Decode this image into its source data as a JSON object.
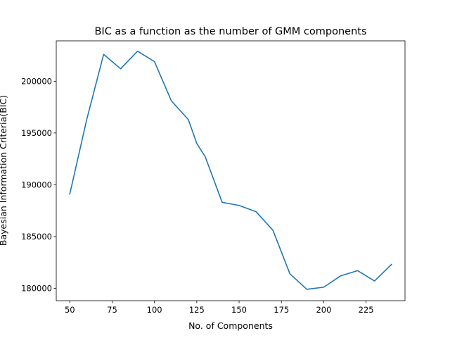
{
  "chart_data": {
    "type": "line",
    "title": "BIC as a function as the number of GMM components",
    "xlabel": "No. of Components",
    "ylabel": "Bayesian Information Criteria(BIC)",
    "xlim": [
      42,
      248
    ],
    "ylim": [
      178800,
      203900
    ],
    "xticks": [
      50,
      75,
      100,
      125,
      150,
      175,
      200,
      225
    ],
    "yticks": [
      180000,
      185000,
      190000,
      195000,
      200000
    ],
    "grid": false,
    "series": [
      {
        "color": "#1f77b4",
        "x": [
          50,
          60,
          70,
          80,
          90,
          100,
          110,
          120,
          125,
          130,
          140,
          150,
          160,
          170,
          180,
          190,
          200,
          210,
          220,
          230,
          240
        ],
        "y": [
          189100,
          196300,
          202600,
          201200,
          202900,
          201900,
          198100,
          196300,
          194000,
          192700,
          188300,
          188000,
          187400,
          185600,
          181400,
          179900,
          180100,
          181200,
          181700,
          180700,
          182300
        ]
      }
    ]
  }
}
